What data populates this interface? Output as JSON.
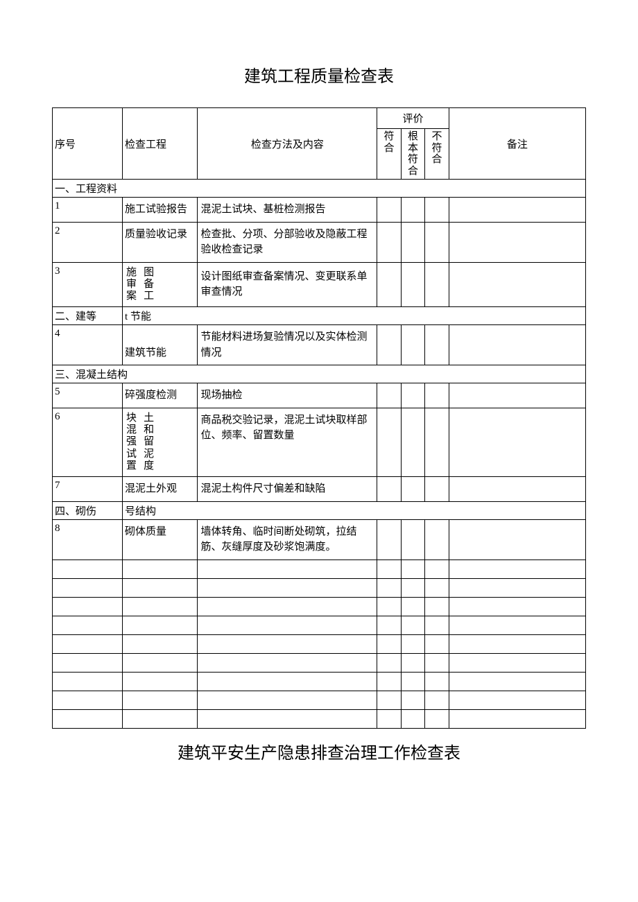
{
  "document": {
    "title": "建筑工程质量检查表",
    "title2": "建筑平安生产隐患排查治理工作检查表",
    "background_color": "#ffffff",
    "border_color": "#000000",
    "text_color": "#000000",
    "title_fontsize": 24,
    "body_fontsize": 15
  },
  "table": {
    "type": "table",
    "headers": {
      "seq": "序号",
      "project": "检查工程",
      "method": "检查方法及内容",
      "evaluation": "评价",
      "eval_conform": "符合",
      "eval_basic": "根本符合",
      "eval_not": "不符合",
      "note": "备注"
    },
    "sections": [
      {
        "label": "一、工程资料",
        "rows": [
          {
            "seq": "1",
            "project": "施工试验报告",
            "method": "混泥土试块、基桩检测报告"
          },
          {
            "seq": "2",
            "project": "质量验收记录",
            "method": "检查批、分项、分部验收及隐蔽工程验收检查记录"
          },
          {
            "seq": "3",
            "project_col1": "施审案",
            "project_col2": "图备工",
            "method": "设计图纸审查备案情况、变更联系单审查情况"
          }
        ]
      },
      {
        "label_prefix": "二、建等",
        "label_suffix": "t 节能",
        "rows": [
          {
            "seq": "4",
            "project": "建筑节能",
            "method": "节能材料进场复验情况以及实体检测情况"
          }
        ]
      },
      {
        "label": "三、混凝土结构",
        "rows": [
          {
            "seq": "5",
            "project": "碎强度检测",
            "method": "现场抽检"
          },
          {
            "seq": "6",
            "project_col1": "块混强试置",
            "project_col2": "土和留泥度",
            "method": "商品税交验记录，混泥土试块取样部位、频率、留置数量"
          },
          {
            "seq": "7",
            "project": "混泥土外观",
            "method": "混泥土构件尺寸偏差和缺陷"
          }
        ]
      },
      {
        "label_prefix": "四、砌伤",
        "label_suffix": "号结构",
        "rows": [
          {
            "seq": "8",
            "project": "砌体质量",
            "method": "墙体转角、临时间断处砌筑，拉结筋、灰缝厚度及砂浆饱满度。"
          }
        ]
      }
    ],
    "empty_rows": 9,
    "column_widths": {
      "seq": 82,
      "project": 88,
      "method": 210,
      "eval": 28,
      "note": 160
    }
  }
}
